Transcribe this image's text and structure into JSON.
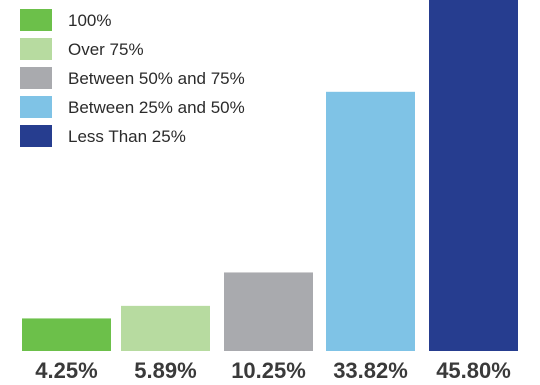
{
  "chart_data": {
    "type": "bar",
    "categories": [
      "100%",
      "Over 75%",
      "Between 50% and 75%",
      "Between 25% and 50%",
      "Less Than 25%"
    ],
    "values": [
      4.25,
      5.89,
      10.25,
      33.82,
      45.8
    ],
    "value_labels": [
      "4.25%",
      "5.89%",
      "10.25%",
      "33.82%",
      "45.80%"
    ],
    "colors": [
      "#6cc04a",
      "#b7dba0",
      "#a9aaae",
      "#7fc3e6",
      "#263d8f"
    ],
    "legend": {
      "position": "top-left",
      "entries": [
        "100%",
        "Over 75%",
        "Between 50% and 75%",
        "Between 25% and 50%",
        "Less Than 25%"
      ]
    },
    "title": "",
    "xlabel": "",
    "ylabel": "",
    "ylim": [
      0,
      45.8
    ],
    "grid": false
  }
}
